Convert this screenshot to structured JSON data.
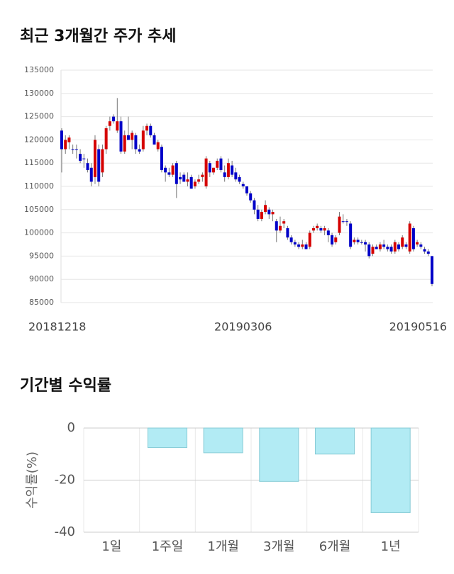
{
  "chart_data": [
    {
      "type": "candlestick",
      "title": "최근 3개월간 주가 추세",
      "categories": [
        "20181218",
        null,
        null,
        null,
        null,
        null,
        null,
        null,
        null,
        null,
        null,
        null,
        null,
        null,
        null,
        null,
        null,
        null,
        null,
        null,
        null,
        null,
        null,
        null,
        null,
        null,
        null,
        null,
        null,
        null,
        null,
        null,
        null,
        null,
        null,
        null,
        null,
        null,
        null,
        null,
        null,
        null,
        null,
        null,
        null,
        null,
        null,
        null,
        null,
        "20190306",
        null,
        null,
        null,
        null,
        null,
        null,
        null,
        null,
        null,
        null,
        null,
        null,
        null,
        null,
        null,
        null,
        null,
        null,
        null,
        null,
        null,
        null,
        null,
        null,
        null,
        null,
        null,
        null,
        null,
        null,
        null,
        null,
        null,
        null,
        null,
        null,
        null,
        null,
        null,
        null,
        null,
        null,
        null,
        null,
        null,
        null,
        null,
        null,
        null,
        null,
        "20190516"
      ],
      "open": [
        122000,
        118000,
        119500,
        118000,
        118000,
        117000,
        116000,
        115000,
        114000,
        112000,
        118000,
        113000,
        118000,
        123000,
        125000,
        122000,
        124000,
        117500,
        121000,
        120000,
        121000,
        118000,
        118000,
        122000,
        123000,
        121000,
        118000,
        118500,
        114000,
        113000,
        112500,
        115000,
        112000,
        112500,
        111000,
        112000,
        110000,
        111000,
        112000,
        110000,
        115000,
        113000,
        114000,
        116000,
        113000,
        112000,
        114500,
        113000,
        112000,
        110500,
        110000,
        108500,
        107000,
        105000,
        103000,
        104500,
        105000,
        104000,
        102500,
        100500,
        102000,
        101000,
        99000,
        98000,
        97500,
        97000,
        97500,
        97000,
        100500,
        101000,
        101000,
        100500,
        100500,
        99500,
        98000,
        100000,
        102500,
        102500,
        102000,
        98000,
        98500,
        98000,
        98000,
        97500,
        95500,
        97000,
        96500,
        97500,
        97000,
        97000,
        96000,
        97500,
        97000,
        97500,
        96000,
        101000,
        97500,
        97500,
        96500,
        96000,
        95000
      ],
      "high": [
        122500,
        121000,
        121000,
        119000,
        119000,
        118000,
        117000,
        116000,
        115000,
        121000,
        119000,
        119000,
        123000,
        125000,
        125500,
        129000,
        125000,
        122000,
        125000,
        122000,
        121500,
        119000,
        123000,
        123500,
        123500,
        121500,
        120000,
        119000,
        114500,
        114000,
        115000,
        115500,
        113000,
        113000,
        113000,
        112500,
        111500,
        112500,
        113000,
        116500,
        115500,
        114000,
        116000,
        116500,
        114500,
        116000,
        115500,
        114000,
        112500,
        111000,
        110000,
        109000,
        107500,
        106000,
        105000,
        107000,
        105500,
        105000,
        103000,
        103500,
        103000,
        101500,
        99500,
        98500,
        98000,
        98500,
        98000,
        100500,
        101500,
        102000,
        101500,
        101500,
        101000,
        100000,
        99500,
        104500,
        104000,
        103000,
        102500,
        99000,
        99000,
        98500,
        98500,
        98000,
        97500,
        97500,
        98000,
        98500,
        97500,
        97500,
        98500,
        98000,
        99500,
        98000,
        102500,
        101500,
        98500,
        98000,
        97000,
        96500,
        95000
      ],
      "low": [
        113000,
        117000,
        118000,
        117000,
        116000,
        115000,
        114000,
        113000,
        110000,
        110500,
        110000,
        112000,
        117000,
        122000,
        123500,
        121500,
        117000,
        117000,
        120000,
        118000,
        117000,
        117000,
        117500,
        121000,
        120500,
        119000,
        117500,
        113000,
        111000,
        112000,
        112000,
        107500,
        110500,
        111000,
        110000,
        109500,
        109500,
        110500,
        111000,
        109500,
        112000,
        112500,
        113500,
        113000,
        111000,
        111500,
        112000,
        111000,
        110500,
        109500,
        108000,
        106500,
        104000,
        102500,
        102500,
        104000,
        103000,
        102500,
        98000,
        100000,
        101000,
        98500,
        97500,
        97000,
        96500,
        96500,
        96500,
        96500,
        100000,
        100500,
        100000,
        99500,
        98000,
        97000,
        97500,
        99500,
        102000,
        101500,
        96500,
        97500,
        97500,
        97500,
        96000,
        94500,
        95000,
        96500,
        96000,
        96500,
        96000,
        95500,
        95500,
        96000,
        96500,
        96500,
        95500,
        96000,
        97000,
        96500,
        95500,
        95000,
        88500
      ],
      "close": [
        118000,
        120000,
        120500,
        118000,
        118000,
        115500,
        116000,
        113500,
        111000,
        120000,
        111000,
        118000,
        122500,
        124000,
        124000,
        124000,
        117500,
        121000,
        120000,
        121500,
        118000,
        117500,
        122000,
        123000,
        121000,
        119000,
        119500,
        113500,
        113000,
        112500,
        114500,
        110500,
        111500,
        111000,
        111500,
        109500,
        111000,
        111500,
        112500,
        116000,
        113000,
        114000,
        115500,
        113500,
        112000,
        115000,
        112500,
        111500,
        111000,
        110000,
        108500,
        107000,
        105000,
        103000,
        104500,
        106000,
        104000,
        104500,
        100500,
        101500,
        102500,
        99000,
        98000,
        97500,
        97000,
        97500,
        96500,
        100000,
        101000,
        101500,
        100500,
        101000,
        99500,
        97500,
        99000,
        103500,
        102500,
        102500,
        97000,
        98500,
        98000,
        98000,
        97500,
        95000,
        97000,
        96500,
        97500,
        97000,
        96500,
        96000,
        98000,
        96500,
        99000,
        97000,
        102000,
        96500,
        98000,
        97000,
        96000,
        95500,
        89000
      ],
      "up_color": "#d50000",
      "down_color": "#0000c8",
      "ylim": [
        85000,
        135000
      ],
      "yticks": [
        85000,
        90000,
        95000,
        100000,
        105000,
        110000,
        115000,
        120000,
        125000,
        130000,
        135000
      ],
      "grid": true
    },
    {
      "type": "bar",
      "title": "기간별 수익률",
      "ylabel": "수익률(%)",
      "categories": [
        "1일",
        "1주일",
        "1개월",
        "3개월",
        "6개월",
        "1년"
      ],
      "values": [
        0,
        -7.5,
        -9.5,
        -20.5,
        -10,
        -32.5
      ],
      "color": "#b2ebf4",
      "edge_color": "#86cbd6",
      "ylim": [
        -40,
        0
      ],
      "yticks": [
        0,
        -20,
        -40
      ],
      "grid": true
    }
  ]
}
